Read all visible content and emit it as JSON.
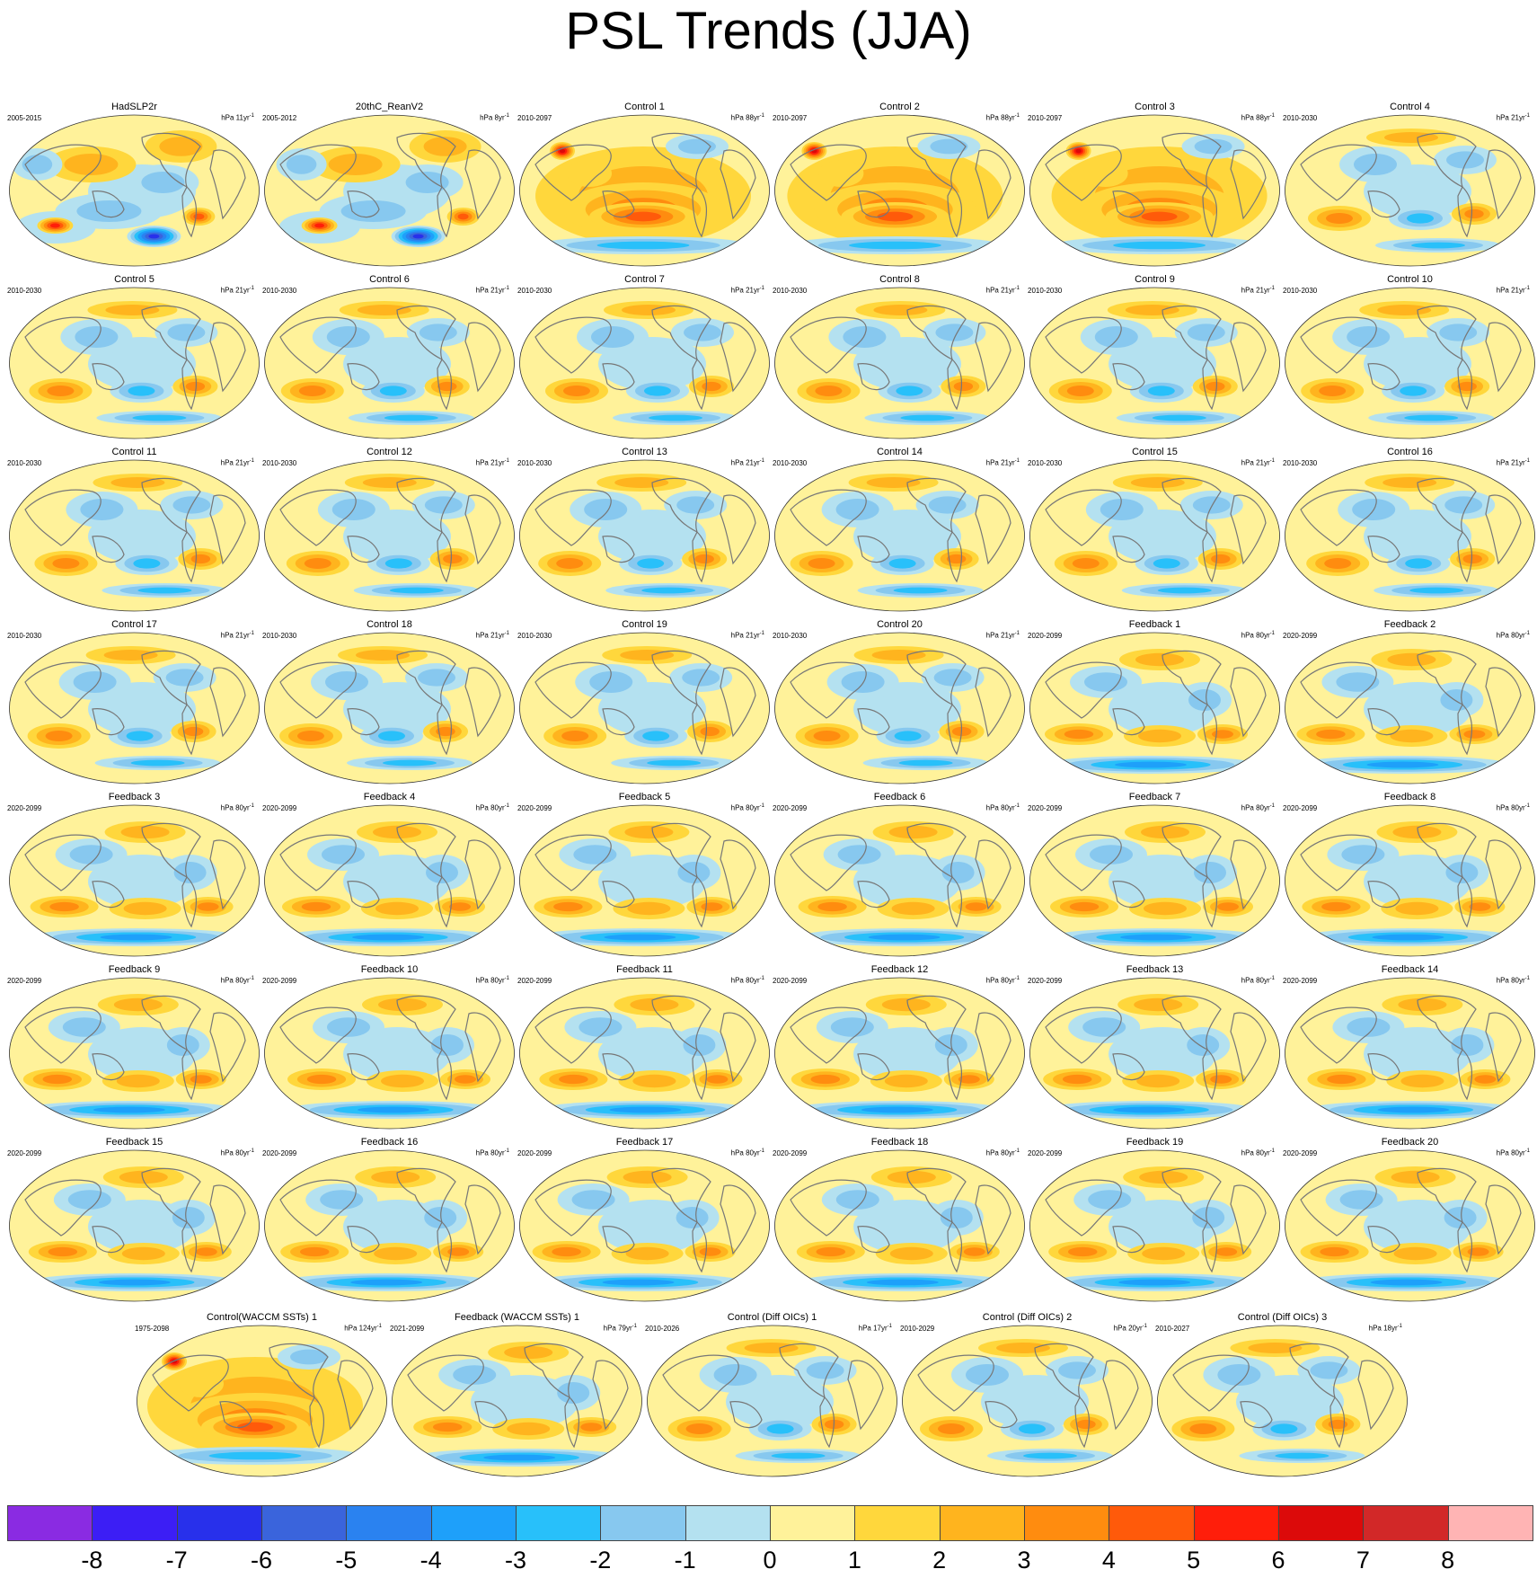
{
  "title": "PSL Trends (JJA)",
  "panels": [
    {
      "title": "HadSLP2r",
      "years": "2005-2015",
      "units": "hPa 11yr",
      "pattern": "obs"
    },
    {
      "title": "20thC_ReanV2",
      "years": "2005-2012",
      "units": "hPa 8yr",
      "pattern": "obs"
    },
    {
      "title": "Control 1",
      "years": "2010-2097",
      "units": "hPa 88yr",
      "pattern": "warm"
    },
    {
      "title": "Control 2",
      "years": "2010-2097",
      "units": "hPa 88yr",
      "pattern": "warm"
    },
    {
      "title": "Control 3",
      "years": "2010-2097",
      "units": "hPa 88yr",
      "pattern": "warm"
    },
    {
      "title": "Control 4",
      "years": "2010-2030",
      "units": "hPa 21yr",
      "pattern": "control"
    },
    {
      "title": "Control 5",
      "years": "2010-2030",
      "units": "hPa 21yr",
      "pattern": "control"
    },
    {
      "title": "Control 6",
      "years": "2010-2030",
      "units": "hPa 21yr",
      "pattern": "control"
    },
    {
      "title": "Control 7",
      "years": "2010-2030",
      "units": "hPa 21yr",
      "pattern": "control"
    },
    {
      "title": "Control 8",
      "years": "2010-2030",
      "units": "hPa 21yr",
      "pattern": "control"
    },
    {
      "title": "Control 9",
      "years": "2010-2030",
      "units": "hPa 21yr",
      "pattern": "control"
    },
    {
      "title": "Control 10",
      "years": "2010-2030",
      "units": "hPa 21yr",
      "pattern": "control"
    },
    {
      "title": "Control 11",
      "years": "2010-2030",
      "units": "hPa 21yr",
      "pattern": "control"
    },
    {
      "title": "Control 12",
      "years": "2010-2030",
      "units": "hPa 21yr",
      "pattern": "control"
    },
    {
      "title": "Control 13",
      "years": "2010-2030",
      "units": "hPa 21yr",
      "pattern": "control"
    },
    {
      "title": "Control 14",
      "years": "2010-2030",
      "units": "hPa 21yr",
      "pattern": "control"
    },
    {
      "title": "Control 15",
      "years": "2010-2030",
      "units": "hPa 21yr",
      "pattern": "control"
    },
    {
      "title": "Control 16",
      "years": "2010-2030",
      "units": "hPa 21yr",
      "pattern": "control"
    },
    {
      "title": "Control 17",
      "years": "2010-2030",
      "units": "hPa 21yr",
      "pattern": "control"
    },
    {
      "title": "Control 18",
      "years": "2010-2030",
      "units": "hPa 21yr",
      "pattern": "control"
    },
    {
      "title": "Control 19",
      "years": "2010-2030",
      "units": "hPa 21yr",
      "pattern": "control"
    },
    {
      "title": "Control 20",
      "years": "2010-2030",
      "units": "hPa 21yr",
      "pattern": "control"
    },
    {
      "title": "Feedback 1",
      "years": "2020-2099",
      "units": "hPa 80yr",
      "pattern": "feedback"
    },
    {
      "title": "Feedback 2",
      "years": "2020-2099",
      "units": "hPa 80yr",
      "pattern": "feedback"
    },
    {
      "title": "Feedback 3",
      "years": "2020-2099",
      "units": "hPa 80yr",
      "pattern": "feedback"
    },
    {
      "title": "Feedback 4",
      "years": "2020-2099",
      "units": "hPa 80yr",
      "pattern": "feedback"
    },
    {
      "title": "Feedback 5",
      "years": "2020-2099",
      "units": "hPa 80yr",
      "pattern": "feedback"
    },
    {
      "title": "Feedback 6",
      "years": "2020-2099",
      "units": "hPa 80yr",
      "pattern": "feedback"
    },
    {
      "title": "Feedback 7",
      "years": "2020-2099",
      "units": "hPa 80yr",
      "pattern": "feedback"
    },
    {
      "title": "Feedback 8",
      "years": "2020-2099",
      "units": "hPa 80yr",
      "pattern": "feedback"
    },
    {
      "title": "Feedback 9",
      "years": "2020-2099",
      "units": "hPa 80yr",
      "pattern": "feedback"
    },
    {
      "title": "Feedback 10",
      "years": "2020-2099",
      "units": "hPa 80yr",
      "pattern": "feedback"
    },
    {
      "title": "Feedback 11",
      "years": "2020-2099",
      "units": "hPa 80yr",
      "pattern": "feedback"
    },
    {
      "title": "Feedback 12",
      "years": "2020-2099",
      "units": "hPa 80yr",
      "pattern": "feedback"
    },
    {
      "title": "Feedback 13",
      "years": "2020-2099",
      "units": "hPa 80yr",
      "pattern": "feedback"
    },
    {
      "title": "Feedback 14",
      "years": "2020-2099",
      "units": "hPa 80yr",
      "pattern": "feedback"
    },
    {
      "title": "Feedback 15",
      "years": "2020-2099",
      "units": "hPa 80yr",
      "pattern": "feedback"
    },
    {
      "title": "Feedback 16",
      "years": "2020-2099",
      "units": "hPa 80yr",
      "pattern": "feedback"
    },
    {
      "title": "Feedback 17",
      "years": "2020-2099",
      "units": "hPa 80yr",
      "pattern": "feedback"
    },
    {
      "title": "Feedback 18",
      "years": "2020-2099",
      "units": "hPa 80yr",
      "pattern": "feedback"
    },
    {
      "title": "Feedback 19",
      "years": "2020-2099",
      "units": "hPa 80yr",
      "pattern": "feedback"
    },
    {
      "title": "Feedback 20",
      "years": "2020-2099",
      "units": "hPa 80yr",
      "pattern": "feedback"
    },
    {
      "title": "Control(WACCM SSTs) 1",
      "years": "1975-2098",
      "units": "hPa 124yr",
      "pattern": "warm"
    },
    {
      "title": "Feedback (WACCM SSTs) 1",
      "years": "2021-2099",
      "units": "hPa 79yr",
      "pattern": "feedback"
    },
    {
      "title": "Control (Diff OICs) 1",
      "years": "2010-2026",
      "units": "hPa 17yr",
      "pattern": "control"
    },
    {
      "title": "Control (Diff OICs) 2",
      "years": "2010-2029",
      "units": "hPa 20yr",
      "pattern": "control"
    },
    {
      "title": "Control (Diff OICs) 3",
      "years": "2010-2027",
      "units": "hPa 18yr",
      "pattern": "control"
    }
  ],
  "units_superscript": "-1",
  "colorbar": {
    "colors": [
      "#8a2be2",
      "#3c1ef5",
      "#2830eb",
      "#3a64dc",
      "#2a82f0",
      "#1ea0fa",
      "#28c0fa",
      "#87c8ef",
      "#b4e1f0",
      "#fff29a",
      "#ffd73c",
      "#ffb41e",
      "#ff8c0f",
      "#ff5a0a",
      "#ff1e0a",
      "#dc0a0a",
      "#d22828",
      "#ffb4b4"
    ],
    "labels": [
      "-8",
      "-7",
      "-6",
      "-5",
      "-4",
      "-3",
      "-2",
      "-1",
      "0",
      "1",
      "2",
      "3",
      "4",
      "5",
      "6",
      "7",
      "8"
    ]
  }
}
